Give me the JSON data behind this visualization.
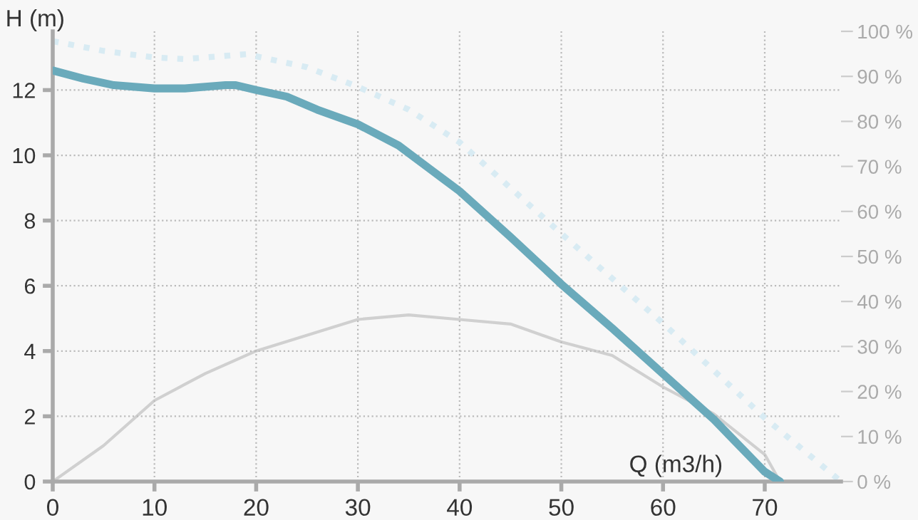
{
  "chart_data": {
    "type": "line",
    "xlabel": "Q (m3/h)",
    "ylabel": "H (m)",
    "xlim": [
      0,
      77.5
    ],
    "xticks": [
      0,
      10,
      20,
      30,
      40,
      50,
      60,
      70
    ],
    "ylim": [
      0,
      13.8
    ],
    "yticks": [
      0,
      2,
      4,
      6,
      8,
      10,
      12
    ],
    "y2lim": [
      0,
      100
    ],
    "y2ticks": [
      {
        "value": 0,
        "label": "0 %"
      },
      {
        "value": 10,
        "label": "10 %"
      },
      {
        "value": 20,
        "label": "20 %"
      },
      {
        "value": 30,
        "label": "30 %"
      },
      {
        "value": 40,
        "label": "40 %"
      },
      {
        "value": 50,
        "label": "50 %"
      },
      {
        "value": 60,
        "label": "60 %"
      },
      {
        "value": 70,
        "label": "70 %"
      },
      {
        "value": 80,
        "label": "80 %"
      },
      {
        "value": 90,
        "label": "90 %"
      },
      {
        "value": 100,
        "label": "100 %"
      }
    ],
    "grid": true,
    "marker": "none",
    "series": [
      {
        "color": "#d8ebf3",
        "line_style": "dotted",
        "x": [
          0,
          5,
          10,
          13,
          19,
          25,
          30,
          35,
          40,
          50,
          60,
          70,
          77.5
        ],
        "values": [
          13.5,
          13.2,
          13.0,
          12.95,
          13.1,
          12.7,
          12.1,
          11.4,
          10.4,
          7.6,
          4.85,
          1.95,
          0
        ]
      },
      {
        "color": "#6aaabb",
        "line_style": "solid",
        "x": [
          0,
          3,
          6,
          10,
          13,
          17,
          18,
          20,
          23,
          26,
          30,
          34,
          37,
          40,
          45,
          50,
          55,
          60,
          65,
          70,
          71.5
        ],
        "values": [
          12.6,
          12.35,
          12.15,
          12.05,
          12.05,
          12.15,
          12.15,
          12.0,
          11.8,
          11.4,
          10.95,
          10.3,
          9.6,
          8.9,
          7.5,
          6.05,
          4.7,
          3.3,
          1.9,
          0.3,
          0
        ]
      },
      {
        "color": "#d0d0d0",
        "line_style": "solid",
        "axis": "y2",
        "x": [
          0,
          5,
          10,
          15,
          20,
          30,
          35,
          40,
          45,
          50,
          55,
          60,
          65,
          70,
          71.5
        ],
        "values": [
          0,
          8,
          18,
          24,
          29,
          36,
          37,
          36,
          35,
          31,
          28,
          21,
          15,
          6,
          0
        ]
      }
    ]
  }
}
